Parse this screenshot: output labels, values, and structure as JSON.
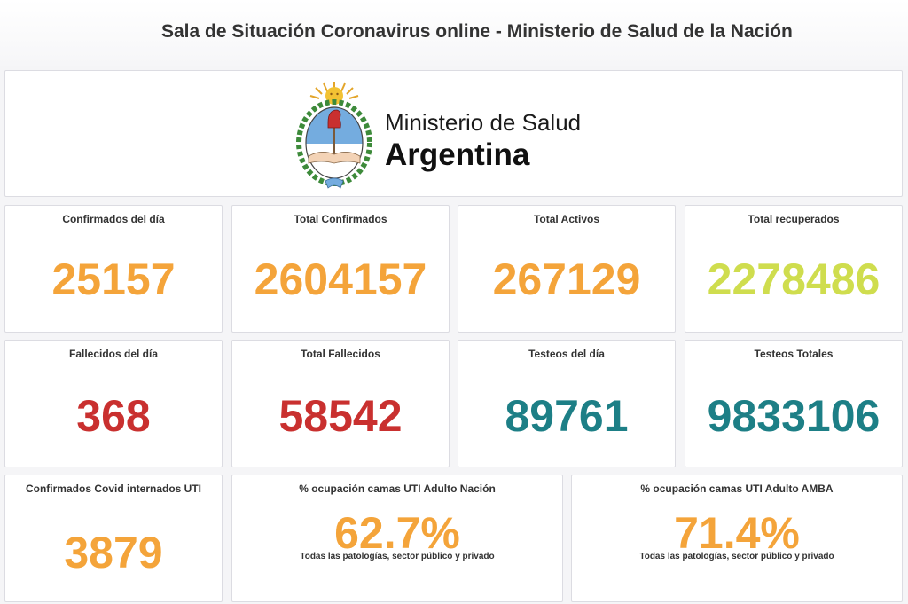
{
  "header": {
    "title": "Sala de Situación Coronavirus online - Ministerio de Salud de la Nación"
  },
  "logo": {
    "line1": "Ministerio de Salud",
    "line2": "Argentina"
  },
  "colors": {
    "orange": "#f4a43a",
    "green": "#cfdd4e",
    "red": "#c9302f",
    "teal": "#1d7f86"
  },
  "stats": [
    {
      "label": "Confirmados del día",
      "value": "25157"
    },
    {
      "label": "Total Confirmados",
      "value": "2604157"
    },
    {
      "label": "Total Activos",
      "value": "267129"
    },
    {
      "label": "Total recuperados",
      "value": "2278486"
    },
    {
      "label": "Fallecidos del día",
      "value": "368"
    },
    {
      "label": "Total Fallecidos",
      "value": "58542"
    },
    {
      "label": "Testeos del día",
      "value": "89761"
    },
    {
      "label": "Testeos Totales",
      "value": "9833106"
    },
    {
      "label": "Confirmados Covid internados UTI",
      "value": "3879"
    },
    {
      "label": "% ocupación camas UTI Adulto Nación",
      "value": "62.7%",
      "sub": "Todas las patologías, sector público y privado"
    },
    {
      "label": "% ocupación camas UTI Adulto AMBA",
      "value": "71.4%",
      "sub": "Todas las patologías, sector público y privado"
    }
  ]
}
